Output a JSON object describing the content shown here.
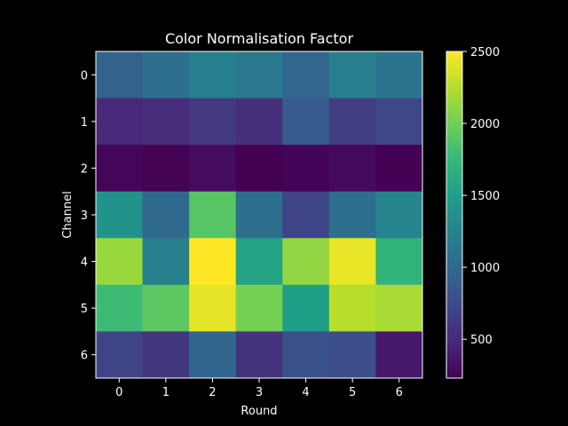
{
  "chart_data": {
    "type": "heatmap",
    "title": "Color Normalisation Factor",
    "xlabel": "Round",
    "ylabel": "Channel",
    "x_categories": [
      "0",
      "1",
      "2",
      "3",
      "4",
      "5",
      "6"
    ],
    "y_categories": [
      "0",
      "1",
      "2",
      "3",
      "4",
      "5",
      "6"
    ],
    "values": [
      [
        940,
        1050,
        1220,
        1150,
        970,
        1200,
        1100
      ],
      [
        480,
        530,
        610,
        540,
        880,
        650,
        720
      ],
      [
        260,
        240,
        300,
        230,
        250,
        280,
        230
      ],
      [
        1390,
        1000,
        1900,
        1050,
        700,
        1050,
        1260
      ],
      [
        2150,
        1220,
        2500,
        1550,
        2120,
        2430,
        1700
      ],
      [
        1780,
        1920,
        2420,
        2020,
        1500,
        2250,
        2200
      ],
      [
        700,
        600,
        960,
        560,
        800,
        780,
        380
      ]
    ],
    "colorscale": "viridis",
    "colorbar": {
      "min": 230,
      "max": 2500,
      "ticks": [
        500,
        1000,
        1500,
        2000,
        2500
      ]
    },
    "grid": false
  }
}
